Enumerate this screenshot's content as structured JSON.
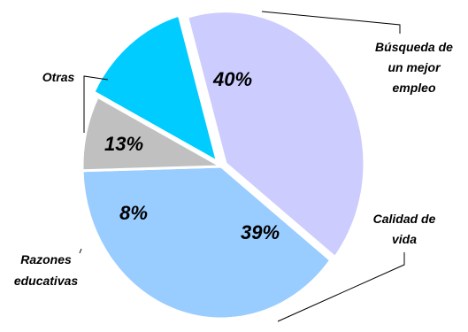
{
  "chart_data": {
    "type": "pie",
    "title": "",
    "slices": [
      {
        "label": "Búsqueda de un mejor empleo",
        "label_lines": [
          "Búsqueda de",
          "un mejor",
          "empleo"
        ],
        "value": 40,
        "value_label": "40%",
        "color": "#ccccff"
      },
      {
        "label": "Calidad de vida",
        "label_lines": [
          "Calidad de",
          "vida"
        ],
        "value": 39,
        "value_label": "39%",
        "color": "#99ccff"
      },
      {
        "label": "Razones educativas",
        "label_lines": [
          "Razones",
          "educativas"
        ],
        "value": 8,
        "value_label": "8%",
        "color": "#c0c0c0"
      },
      {
        "label": "Otras",
        "label_lines": [
          "Otras"
        ],
        "value": 13,
        "value_label": "13%",
        "color": "#00ccff"
      }
    ]
  }
}
